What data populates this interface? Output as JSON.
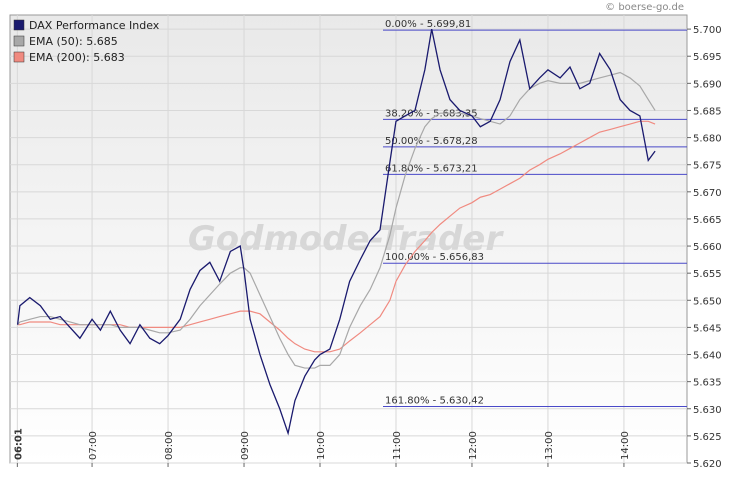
{
  "chart_data": {
    "type": "line",
    "credit": "© boerse-go.de",
    "watermark": "Godmode-Trader",
    "legend": "top-left",
    "grid": true,
    "x": [
      6.02,
      6.05,
      6.18,
      6.32,
      6.45,
      6.58,
      6.71,
      6.84,
      7.0,
      7.11,
      7.24,
      7.37,
      7.5,
      7.63,
      7.76,
      7.89,
      8.0,
      8.16,
      8.29,
      8.42,
      8.55,
      8.68,
      8.82,
      8.95,
      9.0,
      9.08,
      9.21,
      9.34,
      9.47,
      9.58,
      9.67,
      9.8,
      9.93,
      10.0,
      10.13,
      10.26,
      10.39,
      10.53,
      10.66,
      10.79,
      10.92,
      11.0,
      11.12,
      11.25,
      11.38,
      11.47,
      11.58,
      11.71,
      11.84,
      12.0,
      12.11,
      12.24,
      12.37,
      12.5,
      12.63,
      12.76,
      12.89,
      13.0,
      13.16,
      13.29,
      13.42,
      13.55,
      13.68,
      13.82,
      13.95,
      14.08,
      14.21,
      14.32,
      14.41
    ],
    "series": [
      {
        "name": "DAX Performance Index",
        "color": "#1a1a6e",
        "values": [
          5.6455,
          5.649,
          5.6505,
          5.649,
          5.6465,
          5.647,
          5.645,
          5.643,
          5.6465,
          5.6445,
          5.648,
          5.6445,
          5.642,
          5.6455,
          5.643,
          5.642,
          5.6435,
          5.6465,
          5.652,
          5.6555,
          5.657,
          5.6535,
          5.659,
          5.66,
          5.6555,
          5.6465,
          5.64,
          5.6345,
          5.63,
          5.6255,
          5.6315,
          5.636,
          5.639,
          5.64,
          5.641,
          5.6465,
          5.6535,
          5.6575,
          5.661,
          5.663,
          5.6755,
          5.683,
          5.684,
          5.685,
          5.6925,
          5.7,
          5.6925,
          5.687,
          5.685,
          5.684,
          5.682,
          5.683,
          5.687,
          5.694,
          5.698,
          5.689,
          5.691,
          5.6925,
          5.691,
          5.693,
          5.689,
          5.69,
          5.6955,
          5.6925,
          5.687,
          5.685,
          5.684,
          5.6758,
          5.6775
        ]
      },
      {
        "name": "EMA (50): 5.685",
        "color": "#a8a8a8",
        "values": [
          5.6455,
          5.646,
          5.6465,
          5.647,
          5.647,
          5.6465,
          5.646,
          5.6455,
          5.6455,
          5.6455,
          5.6455,
          5.645,
          5.645,
          5.645,
          5.6445,
          5.644,
          5.644,
          5.6445,
          5.6465,
          5.649,
          5.651,
          5.653,
          5.655,
          5.656,
          5.656,
          5.655,
          5.651,
          5.647,
          5.643,
          5.64,
          5.638,
          5.6375,
          5.6375,
          5.638,
          5.638,
          5.64,
          5.645,
          5.649,
          5.652,
          5.656,
          5.662,
          5.667,
          5.673,
          5.678,
          5.682,
          5.6835,
          5.6845,
          5.6845,
          5.6845,
          5.684,
          5.6835,
          5.683,
          5.6825,
          5.684,
          5.687,
          5.689,
          5.69,
          5.6905,
          5.69,
          5.69,
          5.69,
          5.6905,
          5.691,
          5.6915,
          5.692,
          5.691,
          5.6895,
          5.687,
          5.685
        ]
      },
      {
        "name": "EMA (200): 5.683",
        "color": "#f08a80",
        "values": [
          5.6455,
          5.6455,
          5.646,
          5.646,
          5.646,
          5.6455,
          5.6455,
          5.6455,
          5.6455,
          5.6455,
          5.6455,
          5.6455,
          5.645,
          5.645,
          5.645,
          5.645,
          5.645,
          5.645,
          5.6455,
          5.646,
          5.6465,
          5.647,
          5.6475,
          5.648,
          5.648,
          5.648,
          5.6475,
          5.646,
          5.6445,
          5.643,
          5.642,
          5.641,
          5.6405,
          5.6405,
          5.6405,
          5.641,
          5.6425,
          5.644,
          5.6455,
          5.647,
          5.65,
          5.6535,
          5.6565,
          5.659,
          5.661,
          5.6625,
          5.664,
          5.6655,
          5.667,
          5.668,
          5.669,
          5.6695,
          5.6705,
          5.6715,
          5.6725,
          5.674,
          5.675,
          5.676,
          5.677,
          5.678,
          5.679,
          5.68,
          5.681,
          5.6815,
          5.682,
          5.6825,
          5.683,
          5.683,
          5.6825
        ]
      }
    ],
    "annotations": [
      {
        "text": "0.00% - 5.699,81",
        "y": 5.69981
      },
      {
        "text": "38.20% - 5.683,35",
        "y": 5.68335
      },
      {
        "text": "50.00% - 5.678,28",
        "y": 5.67828
      },
      {
        "text": "61.80% - 5.673,21",
        "y": 5.67321
      },
      {
        "text": "100.00% - 5.656,83",
        "y": 5.65683
      },
      {
        "text": "161.80% - 5.630,42",
        "y": 5.63042
      }
    ],
    "xlim": [
      5.92,
      14.83
    ],
    "xticks": [
      {
        "value": 6.0167,
        "label": "06:01"
      },
      {
        "value": 7,
        "label": "07:00"
      },
      {
        "value": 8,
        "label": "08:00"
      },
      {
        "value": 9,
        "label": "09:00"
      },
      {
        "value": 10,
        "label": "10:00"
      },
      {
        "value": 11,
        "label": "11:00"
      },
      {
        "value": 12,
        "label": "12:00"
      },
      {
        "value": 13,
        "label": "13:00"
      },
      {
        "value": 14,
        "label": "14:00"
      }
    ],
    "ylim": [
      5.62,
      5.7026
    ],
    "yticks": [
      {
        "value": 5.62,
        "label": "5.620"
      },
      5.625,
      {
        "value": 5.63,
        "label": "5.630"
      },
      5.635,
      {
        "value": 5.64,
        "label": "5.640"
      },
      5.645,
      {
        "value": 5.65,
        "label": "5.650"
      },
      5.655,
      {
        "value": 5.66,
        "label": "5.660"
      },
      5.665,
      {
        "value": 5.67,
        "label": "5.670"
      },
      5.675,
      {
        "value": 5.68,
        "label": "5.680"
      },
      5.685,
      {
        "value": 5.69,
        "label": "5.690"
      },
      5.695,
      {
        "value": 5.7,
        "label": "5.700"
      }
    ]
  }
}
